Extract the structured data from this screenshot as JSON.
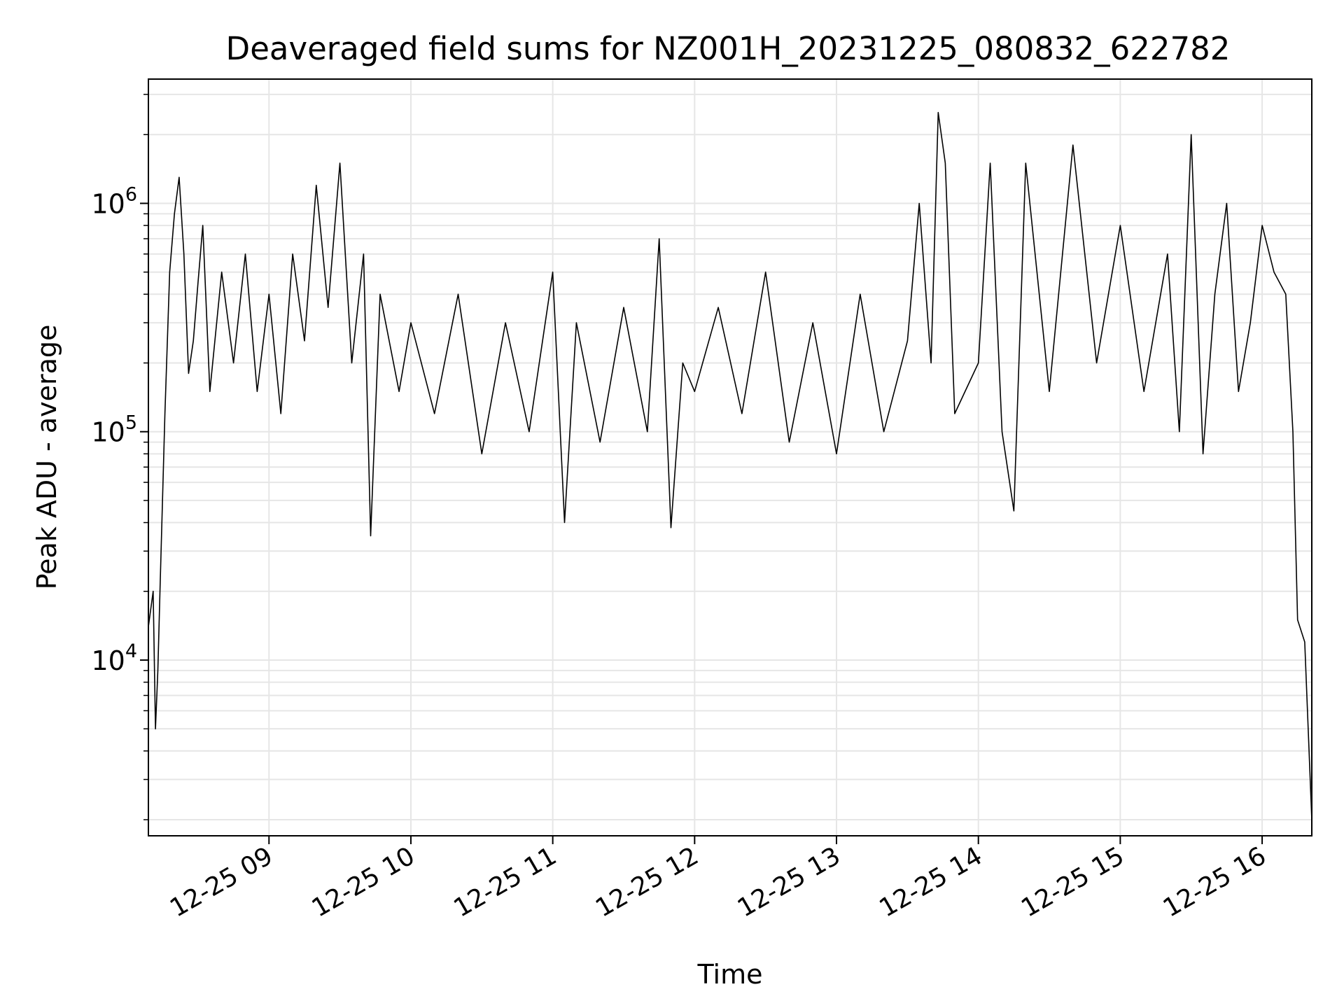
{
  "chart_data": {
    "type": "line",
    "title": "Deaveraged field sums for NZ001H_20231225_080832_622782",
    "xlabel": "Time",
    "ylabel": "Peak ADU - average",
    "x_start": "2023-12-25T08:09",
    "x_end": "2023-12-25T16:21",
    "xlim": [
      "2023-12-25T08:09",
      "2023-12-25T16:21"
    ],
    "ylim": [
      1700,
      3500000
    ],
    "yscale": "log",
    "grid": true,
    "line_color": "#000000",
    "grid_color": "#e6e6e6",
    "x_ticks": [
      {
        "value": "2023-12-25T09:00",
        "label": "12-25 09"
      },
      {
        "value": "2023-12-25T10:00",
        "label": "12-25 10"
      },
      {
        "value": "2023-12-25T11:00",
        "label": "12-25 11"
      },
      {
        "value": "2023-12-25T12:00",
        "label": "12-25 12"
      },
      {
        "value": "2023-12-25T13:00",
        "label": "12-25 13"
      },
      {
        "value": "2023-12-25T14:00",
        "label": "12-25 14"
      },
      {
        "value": "2023-12-25T15:00",
        "label": "12-25 15"
      },
      {
        "value": "2023-12-25T16:00",
        "label": "12-25 16"
      }
    ],
    "y_ticks": [
      {
        "value": 10000,
        "base": "10",
        "exp": "4"
      },
      {
        "value": 100000,
        "base": "10",
        "exp": "5"
      },
      {
        "value": 1000000,
        "base": "10",
        "exp": "6"
      }
    ],
    "series": [
      {
        "values": [
          [
            "2023-12-25T08:09",
            14000
          ],
          [
            "2023-12-25T08:11",
            20000
          ],
          [
            "2023-12-25T08:12",
            5000
          ],
          [
            "2023-12-25T08:13",
            9000
          ],
          [
            "2023-12-25T08:14",
            22000
          ],
          [
            "2023-12-25T08:16",
            120000
          ],
          [
            "2023-12-25T08:18",
            500000
          ],
          [
            "2023-12-25T08:20",
            900000
          ],
          [
            "2023-12-25T08:22",
            1300000
          ],
          [
            "2023-12-25T08:24",
            600000
          ],
          [
            "2023-12-25T08:26",
            180000
          ],
          [
            "2023-12-25T08:28",
            250000
          ],
          [
            "2023-12-25T08:30",
            450000
          ],
          [
            "2023-12-25T08:32",
            800000
          ],
          [
            "2023-12-25T08:35",
            150000
          ],
          [
            "2023-12-25T08:40",
            500000
          ],
          [
            "2023-12-25T08:45",
            200000
          ],
          [
            "2023-12-25T08:50",
            600000
          ],
          [
            "2023-12-25T08:55",
            150000
          ],
          [
            "2023-12-25T09:00",
            400000
          ],
          [
            "2023-12-25T09:05",
            120000
          ],
          [
            "2023-12-25T09:10",
            600000
          ],
          [
            "2023-12-25T09:15",
            250000
          ],
          [
            "2023-12-25T09:20",
            1200000
          ],
          [
            "2023-12-25T09:25",
            350000
          ],
          [
            "2023-12-25T09:30",
            1500000
          ],
          [
            "2023-12-25T09:35",
            200000
          ],
          [
            "2023-12-25T09:40",
            600000
          ],
          [
            "2023-12-25T09:43",
            35000
          ],
          [
            "2023-12-25T09:47",
            400000
          ],
          [
            "2023-12-25T09:55",
            150000
          ],
          [
            "2023-12-25T10:00",
            300000
          ],
          [
            "2023-12-25T10:10",
            120000
          ],
          [
            "2023-12-25T10:20",
            400000
          ],
          [
            "2023-12-25T10:30",
            80000
          ],
          [
            "2023-12-25T10:40",
            300000
          ],
          [
            "2023-12-25T10:50",
            100000
          ],
          [
            "2023-12-25T11:00",
            500000
          ],
          [
            "2023-12-25T11:05",
            40000
          ],
          [
            "2023-12-25T11:10",
            300000
          ],
          [
            "2023-12-25T11:20",
            90000
          ],
          [
            "2023-12-25T11:30",
            350000
          ],
          [
            "2023-12-25T11:40",
            100000
          ],
          [
            "2023-12-25T11:45",
            700000
          ],
          [
            "2023-12-25T11:50",
            38000
          ],
          [
            "2023-12-25T11:55",
            200000
          ],
          [
            "2023-12-25T12:00",
            150000
          ],
          [
            "2023-12-25T12:10",
            350000
          ],
          [
            "2023-12-25T12:20",
            120000
          ],
          [
            "2023-12-25T12:30",
            500000
          ],
          [
            "2023-12-25T12:40",
            90000
          ],
          [
            "2023-12-25T12:50",
            300000
          ],
          [
            "2023-12-25T13:00",
            80000
          ],
          [
            "2023-12-25T13:10",
            400000
          ],
          [
            "2023-12-25T13:20",
            100000
          ],
          [
            "2023-12-25T13:30",
            250000
          ],
          [
            "2023-12-25T13:35",
            1000000
          ],
          [
            "2023-12-25T13:40",
            200000
          ],
          [
            "2023-12-25T13:43",
            2500000
          ],
          [
            "2023-12-25T13:46",
            1500000
          ],
          [
            "2023-12-25T13:50",
            120000
          ],
          [
            "2023-12-25T14:00",
            200000
          ],
          [
            "2023-12-25T14:05",
            1500000
          ],
          [
            "2023-12-25T14:10",
            100000
          ],
          [
            "2023-12-25T14:15",
            45000
          ],
          [
            "2023-12-25T14:20",
            1500000
          ],
          [
            "2023-12-25T14:30",
            150000
          ],
          [
            "2023-12-25T14:40",
            1800000
          ],
          [
            "2023-12-25T14:50",
            200000
          ],
          [
            "2023-12-25T15:00",
            800000
          ],
          [
            "2023-12-25T15:10",
            150000
          ],
          [
            "2023-12-25T15:20",
            600000
          ],
          [
            "2023-12-25T15:25",
            100000
          ],
          [
            "2023-12-25T15:30",
            2000000
          ],
          [
            "2023-12-25T15:35",
            80000
          ],
          [
            "2023-12-25T15:40",
            400000
          ],
          [
            "2023-12-25T15:45",
            1000000
          ],
          [
            "2023-12-25T15:50",
            150000
          ],
          [
            "2023-12-25T15:55",
            300000
          ],
          [
            "2023-12-25T16:00",
            800000
          ],
          [
            "2023-12-25T16:05",
            500000
          ],
          [
            "2023-12-25T16:10",
            400000
          ],
          [
            "2023-12-25T16:13",
            100000
          ],
          [
            "2023-12-25T16:15",
            15000
          ],
          [
            "2023-12-25T16:18",
            12000
          ],
          [
            "2023-12-25T16:21",
            2000
          ]
        ]
      }
    ]
  }
}
